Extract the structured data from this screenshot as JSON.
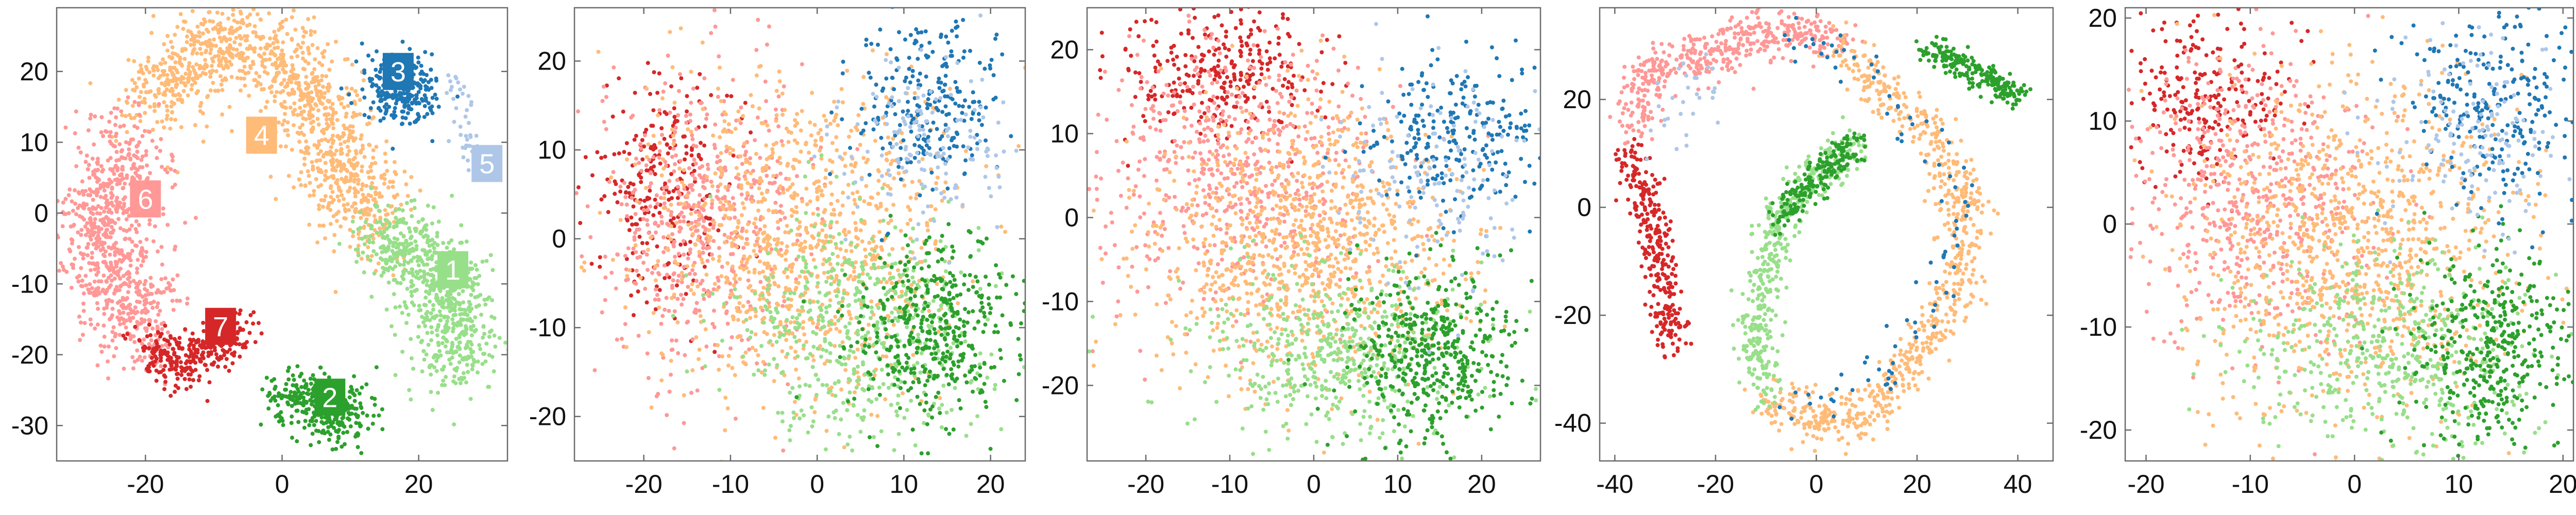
{
  "colors": {
    "1": "#98df8a",
    "2": "#2ca02c",
    "3": "#1f77b4",
    "4": "#ffbb78",
    "5": "#aec7e8",
    "6": "#ff9896",
    "7": "#d62728"
  },
  "chart_data": [
    {
      "type": "scatter",
      "title": "",
      "xlabel": "",
      "ylabel": "",
      "xlim": [
        -33,
        33
      ],
      "ylim": [
        -35,
        29
      ],
      "xticks": [
        "-20",
        "0",
        "20"
      ],
      "xtick_values": [
        -20,
        0,
        20
      ],
      "yticks": [
        "-30",
        "-20",
        "-10",
        "0",
        "10",
        "20"
      ],
      "ytick_values": [
        -30,
        -20,
        -10,
        0,
        10,
        20
      ],
      "grid": false,
      "cluster_labels": [
        {
          "text": "1",
          "x": 25,
          "y": -8,
          "color": "1"
        },
        {
          "text": "2",
          "x": 7,
          "y": -26,
          "color": "2"
        },
        {
          "text": "3",
          "x": 17,
          "y": 20,
          "color": "3"
        },
        {
          "text": "4",
          "x": -3,
          "y": 11,
          "color": "4"
        },
        {
          "text": "5",
          "x": 30,
          "y": 7,
          "color": "5"
        },
        {
          "text": "6",
          "x": -20,
          "y": 2,
          "color": "6"
        },
        {
          "text": "7",
          "x": -9,
          "y": -16,
          "color": "7"
        }
      ],
      "series": [
        {
          "cluster": "4",
          "path": [
            [
              -20,
              15
            ],
            [
              -15,
              20
            ],
            [
              -10,
              24
            ],
            [
              -3,
              24
            ],
            [
              2,
              20
            ],
            [
              6,
              11
            ],
            [
              11,
              3
            ],
            [
              14,
              -3
            ]
          ],
          "spread": 3.2,
          "n": 1200
        },
        {
          "cluster": "6",
          "path": [
            [
              -22,
              10
            ],
            [
              -25,
              4
            ],
            [
              -27,
              -2
            ],
            [
              -25,
              -8
            ],
            [
              -22,
              -13
            ],
            [
              -20,
              -18
            ]
          ],
          "spread": 3.4,
          "n": 800
        },
        {
          "cluster": "1",
          "path": [
            [
              14,
              -3
            ],
            [
              18,
              -5
            ],
            [
              22,
              -8
            ],
            [
              25,
              -13
            ],
            [
              26,
              -18
            ],
            [
              24,
              -22
            ]
          ],
          "spread": 3.0,
          "n": 700
        },
        {
          "cluster": "7",
          "path": [
            [
              -20,
              -19
            ],
            [
              -15,
              -21
            ],
            [
              -10,
              -19
            ],
            [
              -6,
              -16
            ]
          ],
          "spread": 1.8,
          "n": 300
        },
        {
          "cluster": "2",
          "path": [
            [
              0,
              -26
            ],
            [
              5,
              -26
            ],
            [
              10,
              -28
            ],
            [
              7,
              -30
            ]
          ],
          "spread": 2.2,
          "n": 350
        },
        {
          "cluster": "3",
          "path": [
            [
              16,
              20
            ],
            [
              20,
              18
            ],
            [
              19,
              15
            ],
            [
              14,
              18
            ]
          ],
          "spread": 2.0,
          "n": 280
        },
        {
          "cluster": "5",
          "path": [
            [
              25,
              20
            ],
            [
              26,
              18
            ],
            [
              27,
              9
            ],
            [
              28,
              8
            ]
          ],
          "spread": 0.8,
          "n": 40
        }
      ]
    },
    {
      "type": "scatter",
      "title": "",
      "xlabel": "",
      "ylabel": "",
      "xlim": [
        -28,
        24
      ],
      "ylim": [
        -25,
        26
      ],
      "xticks": [
        "-20",
        "-10",
        "0",
        "10",
        "20"
      ],
      "xtick_values": [
        -20,
        -10,
        0,
        10,
        20
      ],
      "yticks": [
        "-20",
        "-10",
        "0",
        "10",
        "20"
      ],
      "ytick_values": [
        -20,
        -10,
        0,
        10,
        20
      ],
      "grid": false,
      "series": [
        {
          "cluster": "7",
          "center": [
            -18,
            6
          ],
          "sd": [
            4,
            6
          ],
          "n": 250
        },
        {
          "cluster": "6",
          "center": [
            -13,
            2
          ],
          "sd": [
            6,
            8
          ],
          "n": 550
        },
        {
          "cluster": "4",
          "center": [
            -2,
            0
          ],
          "sd": [
            9,
            9
          ],
          "n": 1000
        },
        {
          "cluster": "1",
          "center": [
            5,
            -10
          ],
          "sd": [
            7,
            6
          ],
          "n": 550
        },
        {
          "cluster": "2",
          "center": [
            14,
            -10
          ],
          "sd": [
            5,
            5
          ],
          "n": 450
        },
        {
          "cluster": "3",
          "center": [
            13,
            16
          ],
          "sd": [
            4,
            5
          ],
          "n": 250
        },
        {
          "cluster": "5",
          "center": [
            12,
            11
          ],
          "sd": [
            5,
            5
          ],
          "n": 150
        }
      ]
    },
    {
      "type": "scatter",
      "title": "",
      "xlabel": "",
      "ylabel": "",
      "xlim": [
        -27,
        27
      ],
      "ylim": [
        -29,
        25
      ],
      "xticks": [
        "-20",
        "-10",
        "0",
        "10",
        "20"
      ],
      "xtick_values": [
        -20,
        -10,
        0,
        10,
        20
      ],
      "yticks": [
        "-20",
        "-10",
        "0",
        "10",
        "20"
      ],
      "ytick_values": [
        -20,
        -10,
        0,
        10,
        20
      ],
      "grid": false,
      "series": [
        {
          "cluster": "7",
          "center": [
            -11,
            17
          ],
          "sd": [
            6,
            4
          ],
          "n": 300
        },
        {
          "cluster": "6",
          "center": [
            -10,
            6
          ],
          "sd": [
            8,
            8
          ],
          "n": 600
        },
        {
          "cluster": "4",
          "center": [
            -1,
            -3
          ],
          "sd": [
            9,
            8
          ],
          "n": 1000
        },
        {
          "cluster": "1",
          "center": [
            3,
            -16
          ],
          "sd": [
            8,
            5
          ],
          "n": 500
        },
        {
          "cluster": "2",
          "center": [
            14,
            -16
          ],
          "sd": [
            5,
            5
          ],
          "n": 450
        },
        {
          "cluster": "3",
          "center": [
            17,
            10
          ],
          "sd": [
            5,
            5
          ],
          "n": 250
        },
        {
          "cluster": "5",
          "center": [
            14,
            5
          ],
          "sd": [
            6,
            6
          ],
          "n": 150
        }
      ]
    },
    {
      "type": "scatter",
      "title": "",
      "xlabel": "",
      "ylabel": "",
      "xlim": [
        -43,
        47
      ],
      "ylim": [
        -47,
        37
      ],
      "xticks": [
        "-40",
        "-20",
        "0",
        "20",
        "40"
      ],
      "xtick_values": [
        -40,
        -20,
        0,
        20,
        40
      ],
      "yticks": [
        "-40",
        "-20",
        "0",
        "20"
      ],
      "ytick_values": [
        -40,
        -20,
        0,
        20
      ],
      "grid": false,
      "series": [
        {
          "cluster": "7",
          "path": [
            [
              -37,
              10
            ],
            [
              -34,
              0
            ],
            [
              -31,
              -10
            ],
            [
              -29,
              -20
            ],
            [
              -30,
              -26
            ]
          ],
          "spread": 1.8,
          "n": 300
        },
        {
          "cluster": "6",
          "path": [
            [
              -37,
              15
            ],
            [
              -34,
              25
            ],
            [
              -22,
              28
            ],
            [
              -12,
              32
            ],
            [
              -2,
              33
            ],
            [
              5,
              30
            ]
          ],
          "spread": 2.2,
          "n": 450
        },
        {
          "cluster": "4",
          "path": [
            [
              5,
              30
            ],
            [
              15,
              20
            ],
            [
              24,
              12
            ],
            [
              30,
              0
            ],
            [
              28,
              -15
            ],
            [
              20,
              -28
            ],
            [
              10,
              -38
            ],
            [
              0,
              -40
            ],
            [
              -10,
              -35
            ]
          ],
          "spread": 2.3,
          "n": 750
        },
        {
          "cluster": "1",
          "path": [
            [
              -10,
              -35
            ],
            [
              -12,
              -22
            ],
            [
              -10,
              -10
            ],
            [
              -6,
              0
            ],
            [
              0,
              6
            ],
            [
              8,
              12
            ]
          ],
          "spread": 2.0,
          "n": 450
        },
        {
          "cluster": "2",
          "path": [
            [
              -8,
              -3
            ],
            [
              -3,
              3
            ],
            [
              3,
              8
            ],
            [
              8,
              12
            ]
          ],
          "spread": 1.5,
          "n": 200
        },
        {
          "cluster": "2",
          "path": [
            [
              22,
              29
            ],
            [
              28,
              27
            ],
            [
              34,
              24
            ],
            [
              40,
              20
            ]
          ],
          "spread": 1.3,
          "n": 220
        },
        {
          "cluster": "3",
          "path": [
            [
              -5,
              33
            ],
            [
              10,
              25
            ],
            [
              25,
              10
            ],
            [
              30,
              -5
            ],
            [
              15,
              -30
            ],
            [
              -5,
              -38
            ]
          ],
          "spread": 2.5,
          "n": 90
        },
        {
          "cluster": "5",
          "path": [
            [
              -20,
              28
            ],
            [
              -30,
              12
            ]
          ],
          "spread": 3.0,
          "n": 30
        }
      ]
    },
    {
      "type": "scatter",
      "title": "",
      "xlabel": "",
      "ylabel": "",
      "xlim": [
        -22,
        21
      ],
      "ylim": [
        -23,
        21
      ],
      "xticks": [
        "-20",
        "-10",
        "0",
        "10",
        "20"
      ],
      "xtick_values": [
        -20,
        -10,
        0,
        10,
        20
      ],
      "yticks": [
        "-20",
        "-10",
        "0",
        "10",
        "20"
      ],
      "ytick_values": [
        -20,
        -10,
        0,
        10,
        20
      ],
      "grid": false,
      "series": [
        {
          "cluster": "7",
          "center": [
            -15,
            12
          ],
          "sd": [
            4,
            4
          ],
          "n": 250
        },
        {
          "cluster": "6",
          "center": [
            -10,
            3
          ],
          "sd": [
            6,
            7
          ],
          "n": 550
        },
        {
          "cluster": "4",
          "center": [
            0,
            -2
          ],
          "sd": [
            8,
            8
          ],
          "n": 1000
        },
        {
          "cluster": "1",
          "center": [
            3,
            -12
          ],
          "sd": [
            7,
            5
          ],
          "n": 500
        },
        {
          "cluster": "2",
          "center": [
            13,
            -12
          ],
          "sd": [
            4,
            5
          ],
          "n": 400
        },
        {
          "cluster": "3",
          "center": [
            13,
            12
          ],
          "sd": [
            4,
            5
          ],
          "n": 250
        },
        {
          "cluster": "5",
          "center": [
            11,
            8
          ],
          "sd": [
            5,
            5
          ],
          "n": 150
        }
      ]
    }
  ]
}
